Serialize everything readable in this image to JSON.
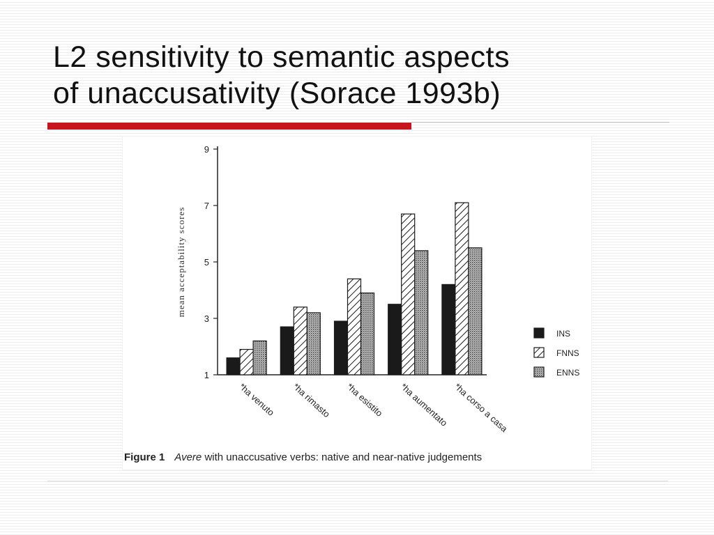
{
  "slide": {
    "title_line1": "L2 sensitivity to semantic aspects",
    "title_line2": "of unaccusativity (Sorace 1993b)"
  },
  "figure": {
    "caption_label": "Figure 1",
    "caption_italic": "Avere",
    "caption_rest": " with unaccusative verbs: native and near-native judgements"
  },
  "chart_data": {
    "type": "bar",
    "categories": [
      "*ha venuto",
      "*ha rimasto",
      "*ha esistito",
      "*ha aumentato",
      "*ha corso a casa"
    ],
    "series": [
      {
        "name": "INS",
        "values": [
          1.6,
          2.7,
          2.9,
          3.5,
          4.2
        ],
        "fill": "solid",
        "color": "#1a1a1a"
      },
      {
        "name": "FNNS",
        "values": [
          1.9,
          3.4,
          4.4,
          6.7,
          7.1
        ],
        "fill": "hatched",
        "color": "#1a1a1a"
      },
      {
        "name": "ENNS",
        "values": [
          2.2,
          3.2,
          3.9,
          5.4,
          5.5
        ],
        "fill": "dotted",
        "color": "#555555"
      }
    ],
    "ylabel": "mean acceptability scores",
    "yticks": [
      1,
      3,
      5,
      7,
      9
    ],
    "ylim": [
      1,
      9
    ],
    "legend_position": "right",
    "grid": false
  }
}
